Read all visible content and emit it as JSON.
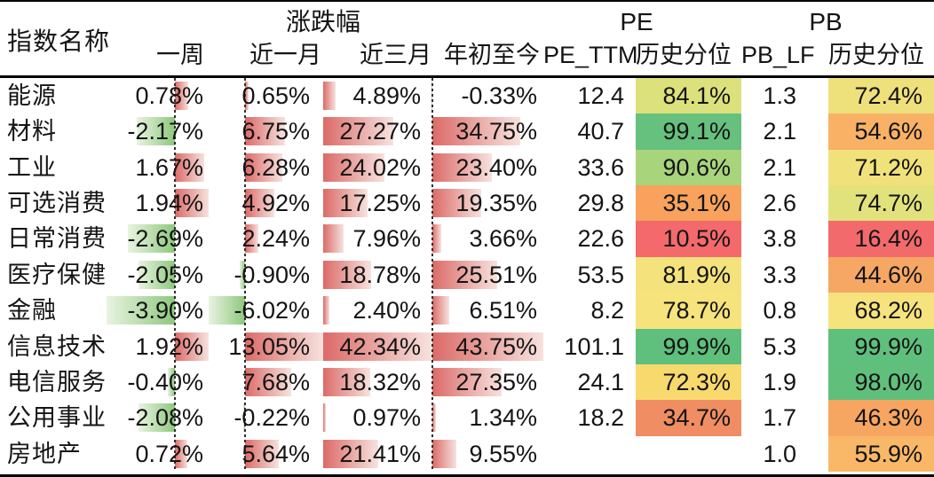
{
  "header": {
    "index_name": "指数名称",
    "change_group": "涨跌幅",
    "pe_group": "PE",
    "pb_group": "PB",
    "sub": {
      "week": "一周",
      "month1": "近一月",
      "month3": "近三月",
      "ytd": "年初至今",
      "pe_ttm": "PE_TTM",
      "pe_pct": "历史分位",
      "pb_lf": "PB_LF",
      "pb_pct": "历史分位"
    }
  },
  "format": {
    "positive_bar_solid": "#dc6b68",
    "positive_bar_fade": "#f6e2de",
    "negative_bar_solid": "#8dc87d",
    "negative_bar_fade": "#e9f3e1",
    "axis_line_color": "#2e2e2e",
    "scale_low_color": "#f4696c",
    "scale_mid_color": "#f7e37c",
    "scale_high_color": "#5fbf7d"
  },
  "chart_data": {
    "type": "table",
    "columns": [
      "指数名称",
      "一周",
      "近一月",
      "近三月",
      "年初至今",
      "PE_TTM",
      "PE历史分位",
      "PB_LF",
      "PB历史分位"
    ],
    "rows": [
      {
        "name": "能源",
        "week": 0.78,
        "month1": 0.65,
        "month3": 4.89,
        "ytd": -0.33,
        "pe_ttm": "12.4",
        "pe_pct": "84.1%",
        "pe_color": "#dce17c",
        "pb_lf": "1.3",
        "pb_pct": "72.4%",
        "pb_color": "#eee07b"
      },
      {
        "name": "材料",
        "week": -2.17,
        "month1": 6.75,
        "month3": 27.27,
        "ytd": 34.75,
        "pe_ttm": "40.7",
        "pe_pct": "99.1%",
        "pe_color": "#66c07e",
        "pb_lf": "2.1",
        "pb_pct": "54.6%",
        "pb_color": "#f9b165"
      },
      {
        "name": "工业",
        "week": 1.67,
        "month1": 6.28,
        "month3": 24.02,
        "ytd": 23.4,
        "pe_ttm": "33.6",
        "pe_pct": "90.6%",
        "pe_color": "#a8d47c",
        "pb_lf": "2.1",
        "pb_pct": "71.2%",
        "pb_color": "#f0e17b"
      },
      {
        "name": "可选消费",
        "week": 1.94,
        "month1": 4.92,
        "month3": 17.25,
        "ytd": 19.35,
        "pe_ttm": "29.8",
        "pe_pct": "35.1%",
        "pe_color": "#f8a25d",
        "pb_lf": "2.6",
        "pb_pct": "74.7%",
        "pb_color": "#e2e27c"
      },
      {
        "name": "日常消费",
        "week": -2.69,
        "month1": 2.24,
        "month3": 7.96,
        "ytd": 3.66,
        "pe_ttm": "22.6",
        "pe_pct": "10.5%",
        "pe_color": "#f4696c",
        "pb_lf": "3.8",
        "pb_pct": "16.4%",
        "pb_color": "#f36a6c"
      },
      {
        "name": "医疗保健",
        "week": -2.05,
        "month1": -0.9,
        "month3": 18.78,
        "ytd": 25.51,
        "pe_ttm": "53.5",
        "pe_pct": "81.9%",
        "pe_color": "#f4e27d",
        "pb_lf": "3.3",
        "pb_pct": "44.6%",
        "pb_color": "#f5a763"
      },
      {
        "name": "金融",
        "week": -3.9,
        "month1": -6.02,
        "month3": 2.4,
        "ytd": 6.51,
        "pe_ttm": "8.2",
        "pe_pct": "78.7%",
        "pe_color": "#f6e37c",
        "pb_lf": "0.8",
        "pb_pct": "68.2%",
        "pb_color": "#f7e37d"
      },
      {
        "name": "信息技术",
        "week": 1.92,
        "month1": 13.05,
        "month3": 42.34,
        "ytd": 43.75,
        "pe_ttm": "101.1",
        "pe_pct": "99.9%",
        "pe_color": "#5fbf7d",
        "pb_lf": "5.3",
        "pb_pct": "99.9%",
        "pb_color": "#5fbf7d"
      },
      {
        "name": "电信服务",
        "week": -0.4,
        "month1": 7.68,
        "month3": 18.32,
        "ytd": 27.35,
        "pe_ttm": "24.1",
        "pe_pct": "72.3%",
        "pe_color": "#f8d96e",
        "pb_lf": "1.9",
        "pb_pct": "98.0%",
        "pb_color": "#61bf7c"
      },
      {
        "name": "公用事业",
        "week": -2.08,
        "month1": -0.22,
        "month3": 0.97,
        "ytd": 1.34,
        "pe_ttm": "18.2",
        "pe_pct": "34.7%",
        "pe_color": "#f08d62",
        "pb_lf": "1.7",
        "pb_pct": "46.3%",
        "pb_color": "#f7a661"
      },
      {
        "name": "房地产",
        "week": 0.72,
        "month1": 5.64,
        "month3": 21.41,
        "ytd": 9.55,
        "pe_ttm": "",
        "pe_pct": "",
        "pe_color": "",
        "pb_lf": "1.0",
        "pb_pct": "55.9%",
        "pb_color": "#f9b867"
      }
    ]
  }
}
